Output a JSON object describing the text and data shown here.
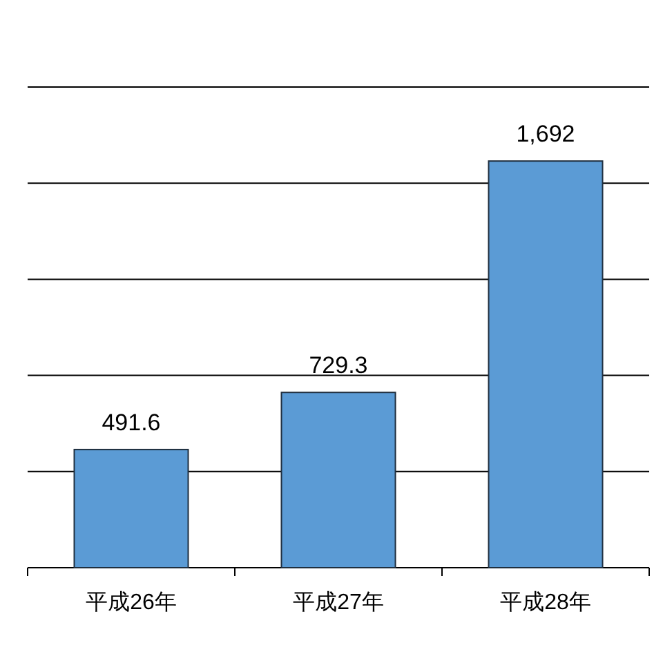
{
  "chart_data": {
    "type": "bar",
    "categories": [
      "平成26年",
      "平成27年",
      "平成28年"
    ],
    "values": [
      491.6,
      729.3,
      1692
    ],
    "value_labels": [
      "491.6",
      "729.3",
      "1,692"
    ],
    "color": "#5b9bd5",
    "ylim": [
      0,
      2000
    ],
    "yticks": [
      {
        "value": 0,
        "label": null
      },
      {
        "value": 400,
        "label": null
      },
      {
        "value": 800,
        "label": null
      },
      {
        "value": 1200,
        "label": null
      },
      {
        "value": 1600,
        "label": null
      },
      {
        "value": 2000,
        "label": null
      }
    ],
    "grid": "y",
    "tick_labels": "x"
  }
}
